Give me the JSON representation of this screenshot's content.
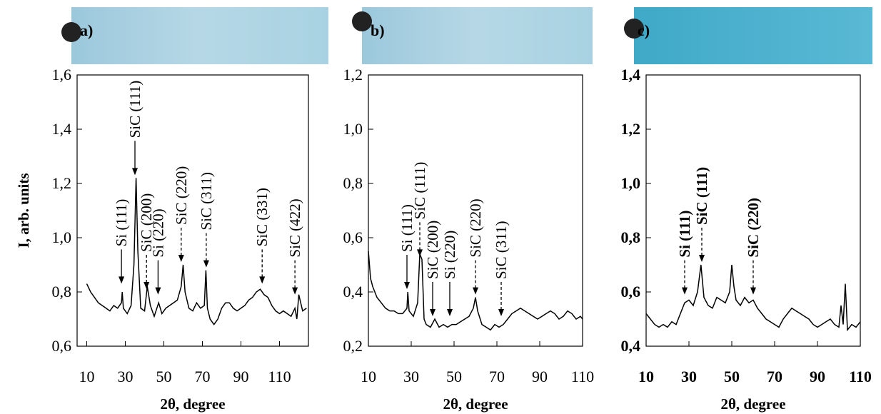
{
  "chart_data": [
    {
      "type": "line",
      "label": "a)",
      "x_label": "2θ, degree",
      "y_label": "I, arb. units",
      "bold": false,
      "color": "#000000",
      "xlim": [
        5,
        125
      ],
      "xticks": [
        10,
        30,
        50,
        70,
        90,
        110
      ],
      "ylim": [
        0.6,
        1.6
      ],
      "yticks": [
        {
          "value": 0.6,
          "label": "0,6"
        },
        {
          "value": 0.8,
          "label": "0,8"
        },
        {
          "value": 1.0,
          "label": "1,0"
        },
        {
          "value": 1.2,
          "label": "1,2"
        },
        {
          "value": 1.4,
          "label": "1,4"
        },
        {
          "value": 1.6,
          "label": "1,6"
        }
      ],
      "x": [
        10,
        12,
        14,
        16,
        18,
        20,
        22,
        24,
        26,
        28,
        28.4,
        29,
        31,
        33,
        34.5,
        35.6,
        36.5,
        38,
        40,
        41.4,
        43,
        45,
        47.3,
        49,
        51,
        53,
        55,
        57,
        59,
        60,
        61,
        63,
        65,
        67,
        69,
        71,
        71.8,
        72.6,
        74,
        76,
        78,
        80,
        82,
        84,
        86,
        88,
        90,
        92,
        94,
        96,
        98,
        100,
        102,
        104,
        106,
        108,
        110,
        112,
        114,
        116,
        118,
        119,
        120,
        122,
        124
      ],
      "values": [
        0.83,
        0.8,
        0.78,
        0.76,
        0.75,
        0.74,
        0.73,
        0.75,
        0.74,
        0.76,
        0.8,
        0.74,
        0.72,
        0.75,
        0.9,
        1.22,
        0.95,
        0.74,
        0.73,
        0.82,
        0.75,
        0.71,
        0.76,
        0.72,
        0.74,
        0.75,
        0.76,
        0.77,
        0.82,
        0.9,
        0.8,
        0.74,
        0.73,
        0.76,
        0.74,
        0.75,
        0.88,
        0.74,
        0.7,
        0.68,
        0.7,
        0.74,
        0.76,
        0.76,
        0.74,
        0.73,
        0.74,
        0.75,
        0.77,
        0.78,
        0.8,
        0.81,
        0.79,
        0.78,
        0.75,
        0.73,
        0.72,
        0.73,
        0.72,
        0.71,
        0.74,
        0.7,
        0.79,
        0.73,
        0.74
      ],
      "annotations": [
        {
          "text": "Si (111)",
          "x": 28,
          "y": 0.82,
          "dashed": false
        },
        {
          "text": "SiC (111)",
          "x": 35,
          "y": 1.22,
          "dashed": false
        },
        {
          "text": "SiC (200)",
          "x": 41,
          "y": 0.8,
          "dashed": true
        },
        {
          "text": "Si (220)",
          "x": 47,
          "y": 0.78,
          "dashed": false
        },
        {
          "text": "SiC (220)",
          "x": 59,
          "y": 0.9,
          "dashed": true
        },
        {
          "text": "SiC (311)",
          "x": 72,
          "y": 0.88,
          "dashed": true
        },
        {
          "text": "SiC (331)",
          "x": 101,
          "y": 0.82,
          "dashed": true
        },
        {
          "text": "SiC (422)",
          "x": 118,
          "y": 0.78,
          "dashed": true
        }
      ]
    },
    {
      "type": "line",
      "label": "b)",
      "x_label": "2θ, degree",
      "bold": false,
      "color": "#000000",
      "xlim": [
        10,
        110
      ],
      "xticks": [
        10,
        30,
        50,
        70,
        90,
        110
      ],
      "ylim": [
        0.2,
        1.2
      ],
      "yticks": [
        {
          "value": 0.2,
          "label": "0,2"
        },
        {
          "value": 0.4,
          "label": "0,4"
        },
        {
          "value": 0.6,
          "label": "0,6"
        },
        {
          "value": 0.8,
          "label": "0,8"
        },
        {
          "value": 1.0,
          "label": "1,0"
        },
        {
          "value": 1.2,
          "label": "1,2"
        }
      ],
      "x": [
        10,
        11,
        12,
        14,
        16,
        18,
        20,
        22,
        24,
        26,
        28,
        28.4,
        29,
        31,
        33,
        34,
        35,
        36,
        37,
        39,
        41,
        43,
        45,
        47,
        49,
        51,
        53,
        55,
        57,
        59,
        60,
        61,
        63,
        65,
        67,
        69,
        71,
        73,
        75,
        77,
        79,
        81,
        83,
        85,
        87,
        89,
        91,
        93,
        95,
        97,
        99,
        101,
        103,
        105,
        107,
        109,
        110
      ],
      "values": [
        0.55,
        0.45,
        0.42,
        0.38,
        0.36,
        0.34,
        0.33,
        0.33,
        0.32,
        0.32,
        0.34,
        0.4,
        0.33,
        0.31,
        0.36,
        0.54,
        0.52,
        0.3,
        0.28,
        0.27,
        0.3,
        0.27,
        0.28,
        0.27,
        0.28,
        0.28,
        0.29,
        0.3,
        0.31,
        0.34,
        0.38,
        0.33,
        0.28,
        0.27,
        0.26,
        0.28,
        0.27,
        0.28,
        0.3,
        0.32,
        0.33,
        0.34,
        0.33,
        0.32,
        0.31,
        0.3,
        0.31,
        0.32,
        0.33,
        0.32,
        0.3,
        0.31,
        0.33,
        0.32,
        0.3,
        0.31,
        0.3
      ],
      "annotations": [
        {
          "text": "Si (111)",
          "x": 28,
          "y": 0.4,
          "dashed": false
        },
        {
          "text": "SiC (111)",
          "x": 34,
          "y": 0.52,
          "dashed": true
        },
        {
          "text": "SiC (200)",
          "x": 40,
          "y": 0.3,
          "dashed": false
        },
        {
          "text": "Si (220)",
          "x": 48,
          "y": 0.3,
          "dashed": false
        },
        {
          "text": "SiC (220)",
          "x": 60,
          "y": 0.38,
          "dashed": true
        },
        {
          "text": "SiC (311)",
          "x": 72,
          "y": 0.3,
          "dashed": true
        }
      ]
    },
    {
      "type": "line",
      "label": "c)",
      "x_label": "2θ, degree",
      "bold": true,
      "color": "#000000",
      "xlim": [
        10,
        110
      ],
      "xticks": [
        10,
        30,
        50,
        70,
        90,
        110
      ],
      "ylim": [
        0.4,
        1.4
      ],
      "yticks": [
        {
          "value": 0.4,
          "label": "0,4"
        },
        {
          "value": 0.6,
          "label": "0,6"
        },
        {
          "value": 0.8,
          "label": "0,8"
        },
        {
          "value": 1.0,
          "label": "1,0"
        },
        {
          "value": 1.2,
          "label": "1,2"
        },
        {
          "value": 1.4,
          "label": "1,4"
        }
      ],
      "x": [
        10,
        12,
        14,
        16,
        18,
        20,
        22,
        24,
        26,
        28,
        30,
        32,
        34,
        35.6,
        37,
        39,
        41,
        43,
        45,
        47,
        49,
        50,
        51,
        52,
        54,
        56,
        58,
        60,
        62,
        64,
        66,
        68,
        70,
        72,
        74,
        76,
        78,
        80,
        82,
        84,
        86,
        88,
        90,
        92,
        94,
        96,
        98,
        100,
        101,
        102,
        103,
        104,
        106,
        108,
        110
      ],
      "values": [
        0.52,
        0.5,
        0.48,
        0.47,
        0.48,
        0.47,
        0.49,
        0.48,
        0.52,
        0.56,
        0.57,
        0.55,
        0.6,
        0.7,
        0.58,
        0.55,
        0.54,
        0.58,
        0.57,
        0.56,
        0.6,
        0.7,
        0.62,
        0.57,
        0.55,
        0.58,
        0.56,
        0.57,
        0.54,
        0.52,
        0.5,
        0.49,
        0.48,
        0.47,
        0.5,
        0.52,
        0.54,
        0.53,
        0.52,
        0.51,
        0.5,
        0.48,
        0.47,
        0.48,
        0.49,
        0.5,
        0.48,
        0.47,
        0.55,
        0.48,
        0.63,
        0.46,
        0.48,
        0.47,
        0.49
      ],
      "annotations": [
        {
          "text": "Si (111)",
          "x": 28,
          "y": 0.58,
          "dashed": true
        },
        {
          "text": "SiC (111)",
          "x": 36,
          "y": 0.7,
          "dashed": true
        },
        {
          "text": "SiC (220)",
          "x": 60,
          "y": 0.58,
          "dashed": true
        }
      ]
    }
  ]
}
